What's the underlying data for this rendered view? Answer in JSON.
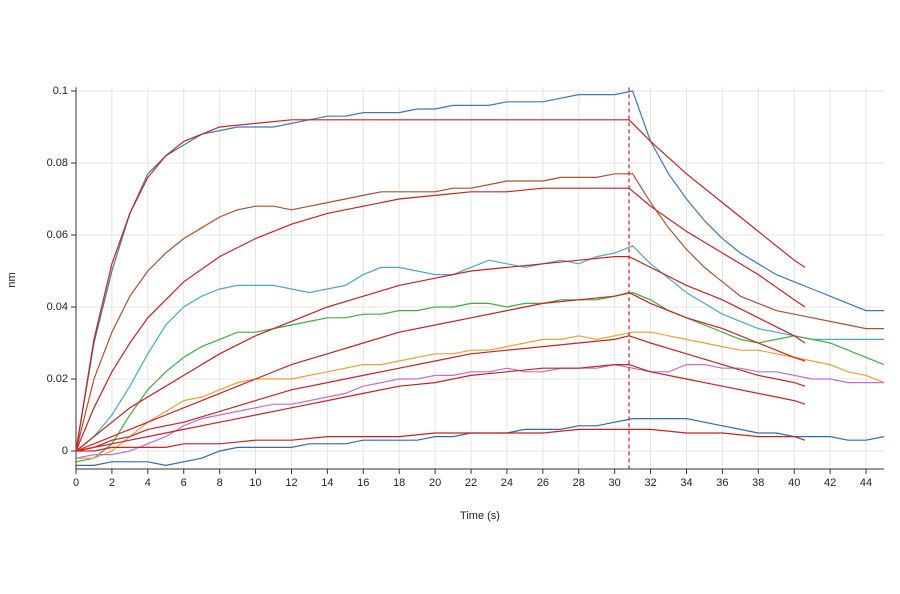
{
  "chart_data": {
    "type": "line",
    "xlabel": "Time (s)",
    "ylabel": "nm",
    "xlim": [
      0,
      45
    ],
    "ylim": [
      -0.005,
      0.101
    ],
    "xticks": [
      0,
      2,
      4,
      6,
      8,
      10,
      12,
      14,
      16,
      18,
      20,
      22,
      24,
      26,
      28,
      30,
      32,
      34,
      36,
      38,
      40,
      42,
      44
    ],
    "yticks": [
      0,
      0.02,
      0.04,
      0.06,
      0.08,
      0.1
    ],
    "grid": true,
    "vline": 30.8,
    "vline_color": "#d02020",
    "x": [
      0,
      1,
      2,
      3,
      4,
      5,
      6,
      7,
      8,
      9,
      10,
      11,
      12,
      13,
      14,
      15,
      16,
      17,
      18,
      19,
      20,
      21,
      22,
      23,
      24,
      25,
      26,
      27,
      28,
      29,
      30,
      31,
      32,
      33,
      34,
      35,
      36,
      37,
      38,
      39,
      40,
      41,
      42,
      43,
      44,
      45
    ],
    "series": [
      {
        "color": "#3a78c0",
        "values": [
          0,
          0.03,
          0.05,
          0.066,
          0.077,
          0.082,
          0.085,
          0.088,
          0.089,
          0.09,
          0.09,
          0.09,
          0.091,
          0.092,
          0.093,
          0.093,
          0.094,
          0.094,
          0.094,
          0.095,
          0.095,
          0.096,
          0.096,
          0.096,
          0.097,
          0.097,
          0.097,
          0.098,
          0.099,
          0.099,
          0.099,
          0.1,
          0.086,
          0.077,
          0.07,
          0.064,
          0.059,
          0.055,
          0.052,
          0.049,
          0.047,
          0.045,
          0.043,
          0.041,
          0.039,
          0.039
        ]
      },
      {
        "color": "#b0502a",
        "values": [
          0,
          0.02,
          0.033,
          0.043,
          0.05,
          0.055,
          0.059,
          0.062,
          0.065,
          0.067,
          0.068,
          0.068,
          0.067,
          0.068,
          0.069,
          0.07,
          0.071,
          0.072,
          0.072,
          0.072,
          0.072,
          0.073,
          0.073,
          0.074,
          0.075,
          0.075,
          0.075,
          0.076,
          0.076,
          0.076,
          0.077,
          0.077,
          0.069,
          0.062,
          0.056,
          0.051,
          0.047,
          0.043,
          0.041,
          0.039,
          0.038,
          0.037,
          0.036,
          0.035,
          0.034,
          0.034
        ]
      },
      {
        "color": "#4aa8d0",
        "values": [
          0,
          0.004,
          0.01,
          0.018,
          0.027,
          0.035,
          0.04,
          0.043,
          0.045,
          0.046,
          0.046,
          0.046,
          0.045,
          0.044,
          0.045,
          0.046,
          0.049,
          0.051,
          0.051,
          0.05,
          0.049,
          0.049,
          0.051,
          0.053,
          0.052,
          0.051,
          0.052,
          0.053,
          0.052,
          0.054,
          0.055,
          0.057,
          0.052,
          0.048,
          0.044,
          0.041,
          0.038,
          0.036,
          0.034,
          0.033,
          0.032,
          0.031,
          0.031,
          0.031,
          0.031,
          0.031
        ]
      },
      {
        "color": "#3cb040",
        "values": [
          -0.003,
          -0.002,
          0.002,
          0.01,
          0.017,
          0.022,
          0.026,
          0.029,
          0.031,
          0.033,
          0.033,
          0.034,
          0.035,
          0.036,
          0.037,
          0.037,
          0.038,
          0.038,
          0.039,
          0.039,
          0.04,
          0.04,
          0.041,
          0.041,
          0.04,
          0.041,
          0.041,
          0.042,
          0.042,
          0.042,
          0.043,
          0.044,
          0.042,
          0.039,
          0.037,
          0.035,
          0.033,
          0.031,
          0.03,
          0.031,
          0.032,
          0.031,
          0.03,
          0.028,
          0.026,
          0.024
        ]
      },
      {
        "color": "#f0a030",
        "values": [
          -0.002,
          -0.002,
          0,
          0.004,
          0.008,
          0.011,
          0.014,
          0.015,
          0.017,
          0.019,
          0.02,
          0.02,
          0.02,
          0.021,
          0.022,
          0.023,
          0.024,
          0.024,
          0.025,
          0.026,
          0.027,
          0.027,
          0.028,
          0.028,
          0.029,
          0.03,
          0.031,
          0.031,
          0.032,
          0.031,
          0.032,
          0.033,
          0.033,
          0.032,
          0.031,
          0.03,
          0.029,
          0.028,
          0.028,
          0.027,
          0.026,
          0.025,
          0.024,
          0.022,
          0.021,
          0.019
        ]
      },
      {
        "color": "#c070d0",
        "values": [
          -0.002,
          -0.001,
          -0.001,
          0,
          0.002,
          0.004,
          0.007,
          0.009,
          0.01,
          0.011,
          0.012,
          0.013,
          0.013,
          0.014,
          0.015,
          0.016,
          0.018,
          0.019,
          0.02,
          0.02,
          0.021,
          0.021,
          0.022,
          0.022,
          0.023,
          0.022,
          0.022,
          0.023,
          0.023,
          0.023,
          0.024,
          0.023,
          0.022,
          0.022,
          0.024,
          0.024,
          0.023,
          0.023,
          0.022,
          0.022,
          0.021,
          0.02,
          0.02,
          0.019,
          0.019,
          0.019
        ]
      },
      {
        "color": "#2e6db0",
        "values": [
          -0.004,
          -0.004,
          -0.003,
          -0.003,
          -0.003,
          -0.004,
          -0.003,
          -0.002,
          0,
          0.001,
          0.001,
          0.001,
          0.001,
          0.002,
          0.002,
          0.002,
          0.003,
          0.003,
          0.003,
          0.003,
          0.004,
          0.004,
          0.005,
          0.005,
          0.005,
          0.006,
          0.006,
          0.006,
          0.007,
          0.007,
          0.008,
          0.009,
          0.009,
          0.009,
          0.009,
          0.008,
          0.007,
          0.006,
          0.005,
          0.005,
          0.004,
          0.004,
          0.004,
          0.003,
          0.003,
          0.004
        ]
      },
      {
        "color": "#d02020",
        "x": [
          0,
          1,
          2,
          3,
          4,
          5,
          6,
          8,
          10,
          12,
          14,
          16,
          18,
          20,
          22,
          24,
          26,
          28,
          30,
          30.8,
          32,
          34,
          36,
          38,
          40,
          40.6
        ],
        "values": [
          0,
          0.031,
          0.052,
          0.066,
          0.076,
          0.082,
          0.086,
          0.09,
          0.091,
          0.092,
          0.092,
          0.092,
          0.092,
          0.092,
          0.092,
          0.092,
          0.092,
          0.092,
          0.092,
          0.092,
          0.086,
          0.077,
          0.069,
          0.061,
          0.053,
          0.051
        ]
      },
      {
        "color": "#d02020",
        "x": [
          0,
          1,
          2,
          3,
          4,
          5,
          6,
          8,
          10,
          12,
          14,
          16,
          18,
          20,
          22,
          24,
          26,
          28,
          30,
          30.8,
          32,
          34,
          36,
          38,
          40,
          40.6
        ],
        "values": [
          0,
          0.012,
          0.022,
          0.03,
          0.037,
          0.042,
          0.047,
          0.054,
          0.059,
          0.063,
          0.066,
          0.068,
          0.07,
          0.071,
          0.072,
          0.072,
          0.073,
          0.073,
          0.073,
          0.073,
          0.068,
          0.061,
          0.055,
          0.049,
          0.042,
          0.04
        ]
      },
      {
        "color": "#d02020",
        "x": [
          0,
          1,
          2,
          3,
          4,
          5,
          6,
          8,
          10,
          12,
          14,
          16,
          18,
          20,
          22,
          24,
          26,
          28,
          30,
          30.8,
          32,
          34,
          36,
          38,
          40,
          40.6
        ],
        "values": [
          0,
          0.004,
          0.008,
          0.012,
          0.015,
          0.018,
          0.021,
          0.027,
          0.032,
          0.036,
          0.04,
          0.043,
          0.046,
          0.048,
          0.05,
          0.051,
          0.052,
          0.053,
          0.054,
          0.054,
          0.051,
          0.046,
          0.042,
          0.037,
          0.032,
          0.03
        ]
      },
      {
        "color": "#d02020",
        "x": [
          0,
          1,
          2,
          3,
          4,
          5,
          6,
          8,
          10,
          12,
          14,
          16,
          18,
          20,
          22,
          24,
          26,
          28,
          30,
          30.8,
          32,
          34,
          36,
          38,
          40,
          40.6
        ],
        "values": [
          0,
          0.002,
          0.004,
          0.006,
          0.008,
          0.01,
          0.012,
          0.016,
          0.02,
          0.024,
          0.027,
          0.03,
          0.033,
          0.035,
          0.037,
          0.039,
          0.041,
          0.042,
          0.043,
          0.044,
          0.041,
          0.037,
          0.034,
          0.03,
          0.026,
          0.025
        ]
      },
      {
        "color": "#d02020",
        "x": [
          0,
          1,
          2,
          3,
          4,
          5,
          6,
          8,
          10,
          12,
          14,
          16,
          18,
          20,
          22,
          24,
          26,
          28,
          30,
          30.8,
          32,
          34,
          36,
          38,
          40,
          40.6
        ],
        "values": [
          0,
          0.001,
          0.003,
          0.004,
          0.006,
          0.007,
          0.008,
          0.011,
          0.014,
          0.017,
          0.019,
          0.021,
          0.023,
          0.025,
          0.027,
          0.028,
          0.029,
          0.03,
          0.031,
          0.032,
          0.03,
          0.027,
          0.024,
          0.021,
          0.019,
          0.018
        ]
      },
      {
        "color": "#d02020",
        "x": [
          0,
          1,
          2,
          3,
          4,
          5,
          6,
          8,
          10,
          12,
          14,
          16,
          18,
          20,
          22,
          24,
          26,
          28,
          30,
          30.8,
          32,
          34,
          36,
          38,
          40,
          40.6
        ],
        "values": [
          0,
          0.001,
          0.002,
          0.003,
          0.004,
          0.005,
          0.006,
          0.008,
          0.01,
          0.012,
          0.014,
          0.016,
          0.018,
          0.019,
          0.021,
          0.022,
          0.023,
          0.023,
          0.024,
          0.024,
          0.022,
          0.02,
          0.018,
          0.016,
          0.014,
          0.013
        ]
      },
      {
        "color": "#d02020",
        "x": [
          0,
          1,
          2,
          3,
          4,
          5,
          6,
          8,
          10,
          12,
          14,
          16,
          18,
          20,
          22,
          24,
          26,
          28,
          30,
          30.8,
          32,
          34,
          36,
          38,
          40,
          40.6
        ],
        "values": [
          0,
          0,
          0.001,
          0.001,
          0.001,
          0.001,
          0.002,
          0.002,
          0.003,
          0.003,
          0.004,
          0.004,
          0.004,
          0.005,
          0.005,
          0.005,
          0.005,
          0.006,
          0.006,
          0.006,
          0.006,
          0.005,
          0.005,
          0.004,
          0.004,
          0.003
        ]
      }
    ]
  }
}
